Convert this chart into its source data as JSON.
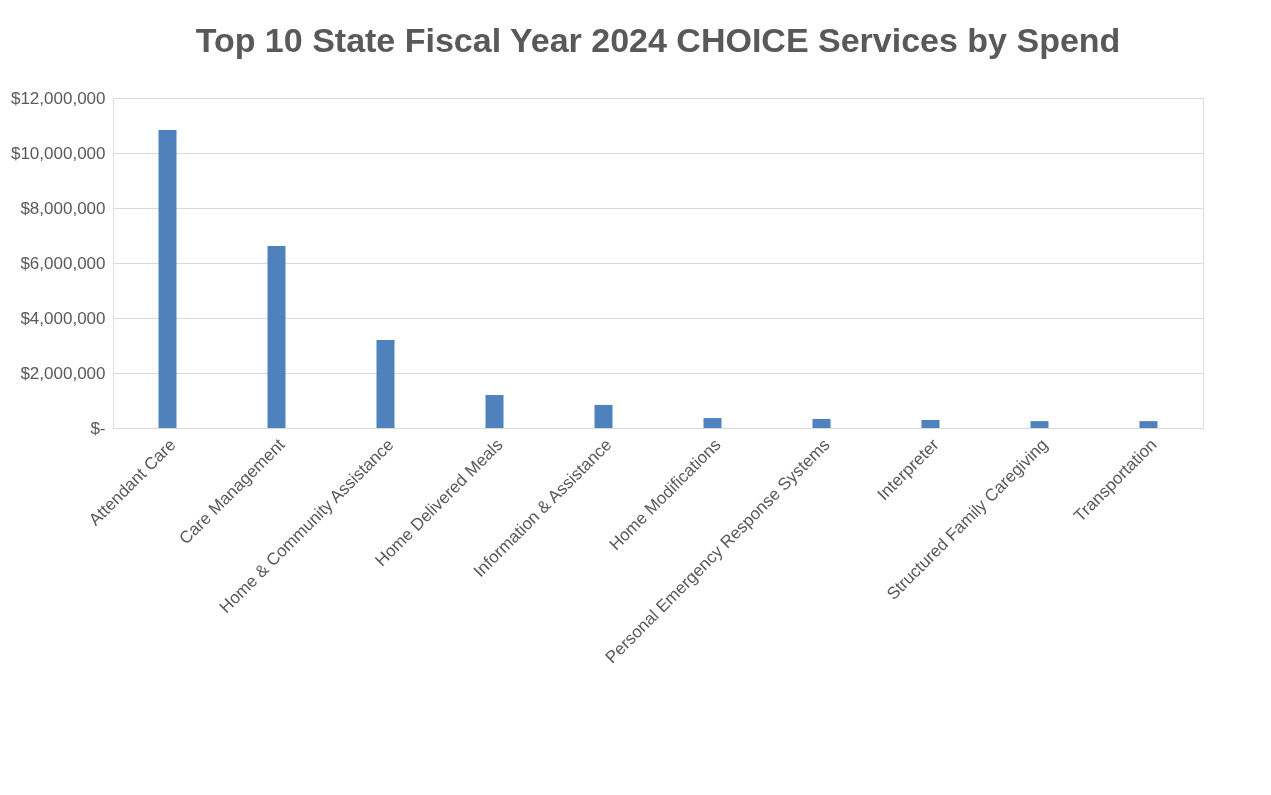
{
  "chart_data": {
    "type": "bar",
    "title": "Top 10 State Fiscal Year 2024 CHOICE Services by Spend",
    "categories": [
      "Attendant Care",
      "Care Management",
      "Home & Community Assistance",
      "Home Delivered Meals",
      "Information & Assistance",
      "Home Modifications",
      "Personal Emergency Response Systems",
      "Interpreter",
      "Structured Family Caregiving",
      "Transportation"
    ],
    "values": [
      10840000,
      6620000,
      3200000,
      1200000,
      840000,
      360000,
      330000,
      290000,
      250000,
      250000
    ],
    "color": "#4f81bd",
    "ylim": [
      0,
      12000000
    ],
    "yticks": [
      {
        "value": 0,
        "label": "$-"
      },
      {
        "value": 2000000,
        "label": "$2,000,000"
      },
      {
        "value": 4000000,
        "label": "$4,000,000"
      },
      {
        "value": 6000000,
        "label": "$6,000,000"
      },
      {
        "value": 8000000,
        "label": "$8,000,000"
      },
      {
        "value": 10000000,
        "label": "$10,000,000"
      },
      {
        "value": 12000000,
        "label": "$12,000,000"
      }
    ],
    "grid": "y"
  }
}
